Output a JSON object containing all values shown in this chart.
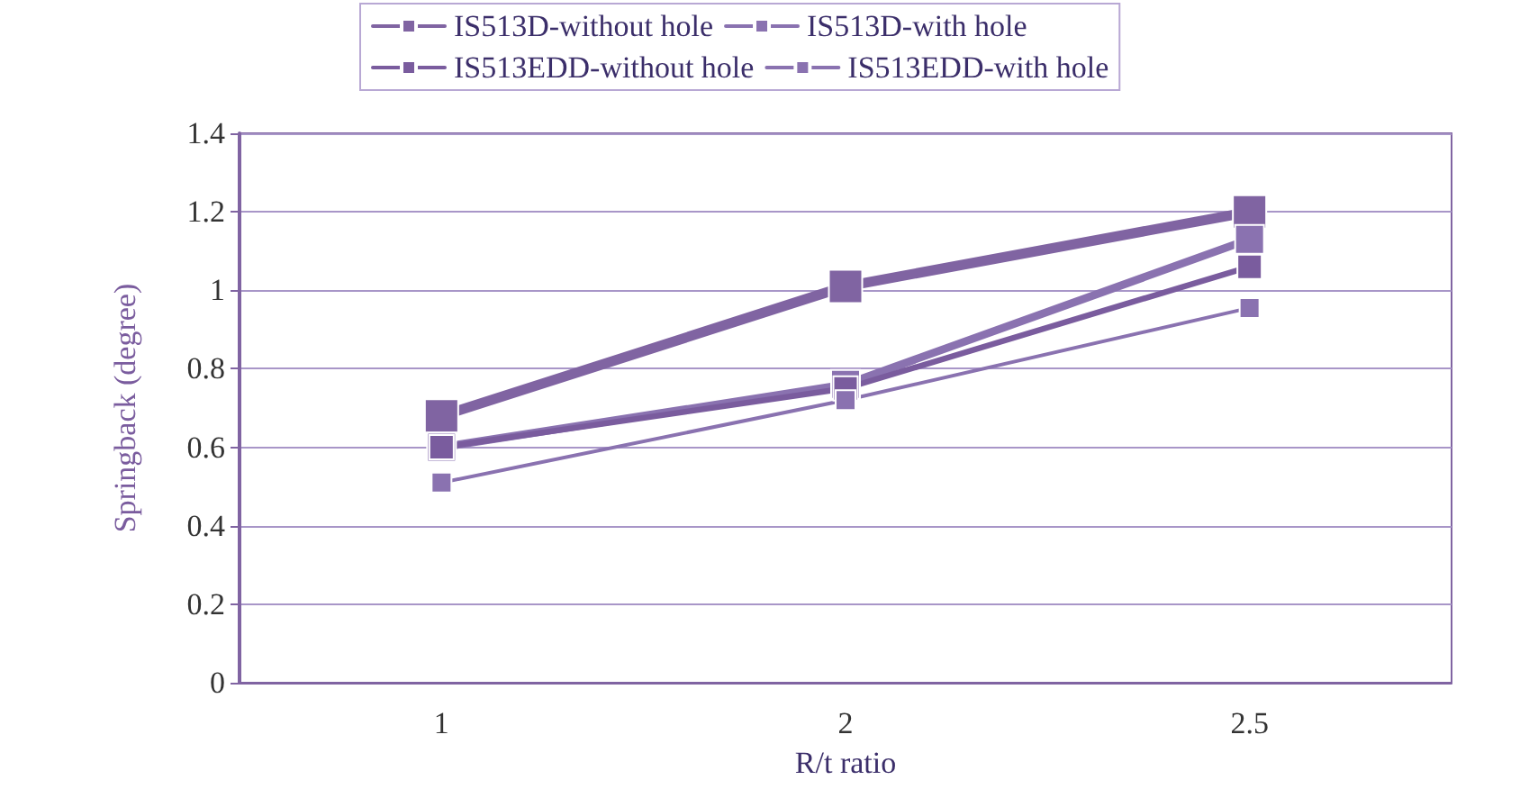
{
  "chart_data": {
    "type": "line",
    "xlabel": "R/t ratio",
    "ylabel": "Springback (degree)",
    "categories": [
      "1",
      "2",
      "2.5"
    ],
    "series": [
      {
        "name": "IS513D-without hole",
        "color": "#8064a2",
        "values": [
          0.68,
          1.01,
          1.2
        ]
      },
      {
        "name": "IS513D-with hole",
        "color": "#8a72b0",
        "values": [
          0.6,
          0.76,
          1.13
        ]
      },
      {
        "name": "IS513EDD-without hole",
        "color": "#7a5c9e",
        "values": [
          0.6,
          0.75,
          1.06
        ]
      },
      {
        "name": "IS513EDD-with hole",
        "color": "#8a72b0",
        "values": [
          0.51,
          0.72,
          0.955
        ]
      }
    ],
    "ylim": [
      0,
      1.4
    ],
    "yticks": [
      0,
      0.2,
      0.4,
      0.6,
      0.8,
      1,
      1.2,
      1.4
    ],
    "grid": "y",
    "legend": "top",
    "marker": "square",
    "line_style": "solid"
  }
}
